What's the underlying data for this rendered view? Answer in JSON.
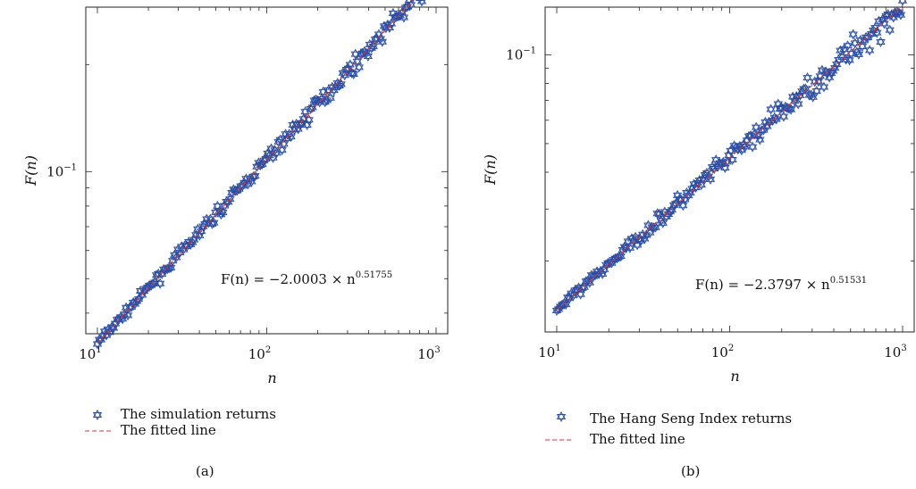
{
  "chart_data": [
    {
      "type": "scatter",
      "scale": "log-log",
      "xlabel": "n",
      "ylabel": "F(n)",
      "xlim": [
        10,
        1000
      ],
      "ylim": [
        0.035,
        0.29
      ],
      "x_ticks": [
        {
          "base": "10",
          "exp": "1"
        },
        {
          "base": "10",
          "exp": "2"
        },
        {
          "base": "10",
          "exp": "3"
        }
      ],
      "y_ticks": [
        {
          "base": "10",
          "exp": "−1",
          "value": 0.1
        }
      ],
      "equation": {
        "lhs": "F(n) = −2.0003 × n",
        "exponent": "0.51755"
      },
      "fit": {
        "coefficient_log10": -2.0003,
        "exponent": 0.51755
      },
      "series": [
        {
          "name": "The simulation returns",
          "marker": "hexagram",
          "color": "#2b4fa8"
        },
        {
          "name": "The fitted line",
          "style": "dashed",
          "color": "#e0332e"
        }
      ],
      "grid": false,
      "legend_position": "below",
      "caption": "(a)"
    },
    {
      "type": "scatter",
      "scale": "log-log",
      "xlabel": "n",
      "ylabel": "F(n)",
      "xlim": [
        10,
        1000
      ],
      "ylim": [
        0.0115,
        0.145
      ],
      "x_ticks": [
        {
          "base": "10",
          "exp": "1"
        },
        {
          "base": "10",
          "exp": "2"
        },
        {
          "base": "10",
          "exp": "3"
        }
      ],
      "y_ticks": [
        {
          "base": "10",
          "exp": "−1",
          "value": 0.1
        }
      ],
      "equation": {
        "lhs": "F(n) = −2.3797 × n",
        "exponent": "0.51531"
      },
      "fit": {
        "coefficient_log10": -2.3797,
        "exponent": 0.51531
      },
      "series": [
        {
          "name": "The Hang Seng Index returns",
          "marker": "hexagram",
          "color": "#2b4fa8"
        },
        {
          "name": "The fitted line",
          "style": "dashed",
          "color": "#e0332e"
        }
      ],
      "grid": false,
      "legend_position": "below",
      "caption": "(b)"
    }
  ]
}
